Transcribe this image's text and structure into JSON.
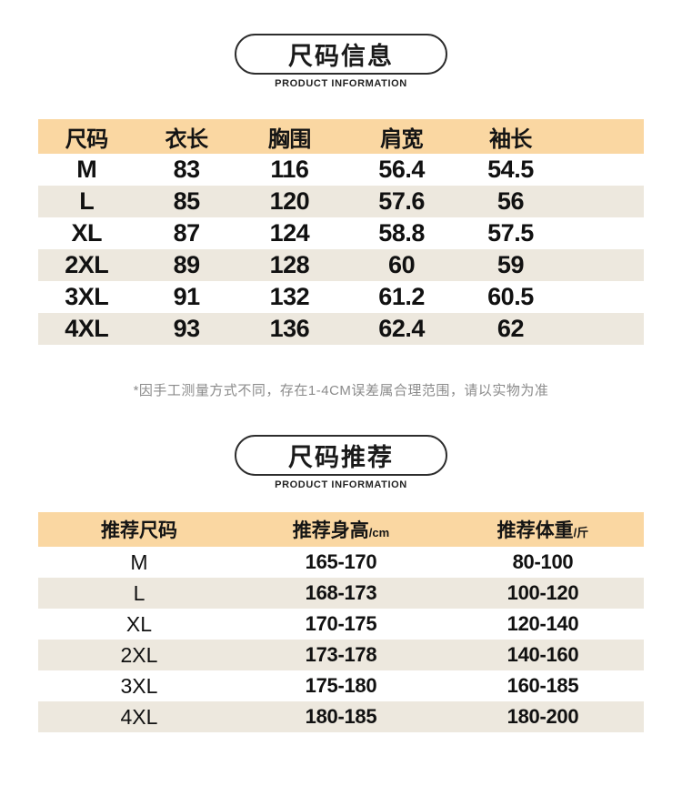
{
  "colors": {
    "header_bg": "#FAD7A2",
    "alt_row_bg": "#EDE8DE",
    "text": "#111111",
    "note_text": "#8B8B8B",
    "badge_border": "#2D2D2D"
  },
  "size_info": {
    "title": "尺码信息",
    "subtitle": "PRODUCT INFORMATION",
    "headers": [
      "尺码",
      "衣长",
      "胸围",
      "肩宽",
      "袖长"
    ],
    "rows": [
      [
        "M",
        "83",
        "116",
        "56.4",
        "54.5"
      ],
      [
        "L",
        "85",
        "120",
        "57.6",
        "56"
      ],
      [
        "XL",
        "87",
        "124",
        "58.8",
        "57.5"
      ],
      [
        "2XL",
        "89",
        "128",
        "60",
        "59"
      ],
      [
        "3XL",
        "91",
        "132",
        "61.2",
        "60.5"
      ],
      [
        "4XL",
        "93",
        "136",
        "62.4",
        "62"
      ]
    ],
    "note": "*因手工测量方式不同，存在1-4CM误差属合理范围，请以实物为准"
  },
  "size_recommend": {
    "title": "尺码推荐",
    "subtitle": "PRODUCT INFORMATION",
    "headers": [
      {
        "label": "推荐尺码",
        "unit": ""
      },
      {
        "label": "推荐身高",
        "unit": "/cm"
      },
      {
        "label": "推荐体重",
        "unit": "/斤"
      }
    ],
    "rows": [
      [
        "M",
        "165-170",
        "80-100"
      ],
      [
        "L",
        "168-173",
        "100-120"
      ],
      [
        "XL",
        "170-175",
        "120-140"
      ],
      [
        "2XL",
        "173-178",
        "140-160"
      ],
      [
        "3XL",
        "175-180",
        "160-185"
      ],
      [
        "4XL",
        "180-185",
        "180-200"
      ]
    ]
  }
}
